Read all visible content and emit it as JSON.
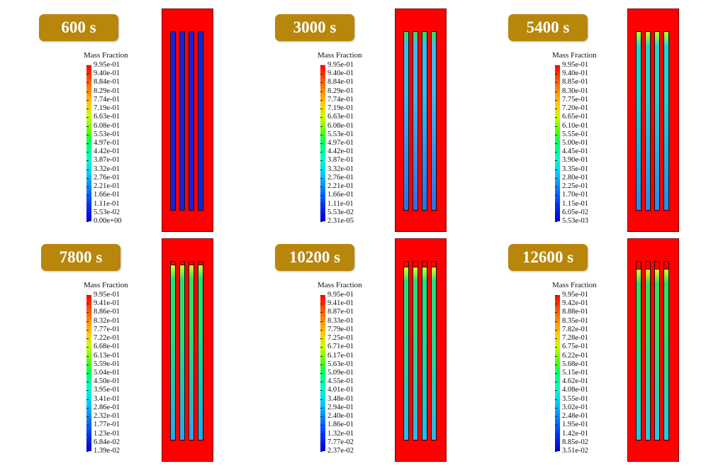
{
  "panels": [
    {
      "time_label": "600 s",
      "legend_title": "Mass Fraction",
      "legend_values": [
        "9.95e-01",
        "9.40e-01",
        "8.84e-01",
        "8.29e-01",
        "7.74e-01",
        "7.19e-01",
        "6.63e-01",
        "6.08e-01",
        "5.53e-01",
        "4.97e-01",
        "4.42e-01",
        "3.87e-01",
        "3.32e-01",
        "2.76e-01",
        "2.21e-01",
        "1.66e-01",
        "1.11e-01",
        "5.53e-02",
        "0.00e+00"
      ],
      "tube_colors": {
        "cap": "#1a20d8",
        "top": "#1a20d8",
        "bottom": "#1a20d8"
      },
      "tube_top_fraction": 0.0
    },
    {
      "time_label": "3000 s",
      "legend_title": "Mass Fraction",
      "legend_values": [
        "9.95e-01",
        "9.40e-01",
        "8.84e-01",
        "8.29e-01",
        "7.74e-01",
        "7.19e-01",
        "6.63e-01",
        "6.08e-01",
        "5.53e-01",
        "4.97e-01",
        "4.42e-01",
        "3.87e-01",
        "3.32e-01",
        "2.76e-01",
        "2.21e-01",
        "1.66e-01",
        "1.11e-01",
        "5.53e-02",
        "2.31e-05"
      ],
      "tube_colors": {
        "cap": "#2fe35b",
        "top": "#3db8ef",
        "bottom": "#2c6fe6"
      },
      "tube_top_fraction": 0.0
    },
    {
      "time_label": "5400 s",
      "legend_title": "Mass Fraction",
      "legend_values": [
        "9.95e-01",
        "9.40e-01",
        "8.85e-01",
        "8.30e-01",
        "7.75e-01",
        "7.20e-01",
        "6.65e-01",
        "6.10e-01",
        "5.55e-01",
        "5.00e-01",
        "4.45e-01",
        "3.90e-01",
        "3.35e-01",
        "2.80e-01",
        "2.25e-01",
        "1.70e-01",
        "1.15e-01",
        "6.05e-02",
        "5.53e-03"
      ],
      "tube_colors": {
        "cap": "#c4ff1a",
        "top": "#1fd8d0",
        "bottom": "#2c88ee"
      },
      "tube_top_fraction": 0.0
    },
    {
      "time_label": "7800 s",
      "legend_title": "Mass Fraction",
      "legend_values": [
        "9.95e-01",
        "9.41e-01",
        "8.86e-01",
        "8.32e-01",
        "7.77e-01",
        "7.22e-01",
        "6.68e-01",
        "6.13e-01",
        "5.59e-01",
        "5.04e-01",
        "4.50e-01",
        "3.95e-01",
        "3.41e-01",
        "2.86e-01",
        "2.32e-01",
        "1.77e-01",
        "1.23e-01",
        "6.84e-02",
        "1.39e-02"
      ],
      "tube_colors": {
        "cap": "#d8ff1a",
        "top": "#28e070",
        "bottom": "#2ba4ee"
      },
      "tube_top_fraction": 0.12
    },
    {
      "time_label": "10200 s",
      "legend_title": "Mass Fraction",
      "legend_values": [
        "9.95e-01",
        "9.41e-01",
        "8.87e-01",
        "8.33e-01",
        "7.79e-01",
        "7.25e-01",
        "6.71e-01",
        "6.17e-01",
        "5.63e-01",
        "5.09e-01",
        "4.55e-01",
        "4.01e-01",
        "3.48e-01",
        "2.94e-01",
        "2.40e-01",
        "1.86e-01",
        "1.32e-01",
        "7.77e-02",
        "2.37e-02"
      ],
      "tube_colors": {
        "cap": "#e8ff10",
        "top": "#20e080",
        "bottom": "#2ab8ec"
      },
      "tube_top_fraction": 0.2
    },
    {
      "time_label": "12600 s",
      "legend_title": "Mass Fraction",
      "legend_values": [
        "9.95e-01",
        "9.42e-01",
        "8.88e-01",
        "8.35e-01",
        "7.82e-01",
        "7.28e-01",
        "6.75e-01",
        "6.22e-01",
        "5.68e-01",
        "5.15e-01",
        "4.62e-01",
        "4.08e-01",
        "3.55e-01",
        "3.02e-01",
        "2.48e-01",
        "1.95e-01",
        "1.42e-01",
        "8.85e-02",
        "3.51e-02"
      ],
      "tube_colors": {
        "cap": "#ffee10",
        "top": "#30e060",
        "bottom": "#25c8e6"
      },
      "tube_top_fraction": 0.28
    }
  ]
}
